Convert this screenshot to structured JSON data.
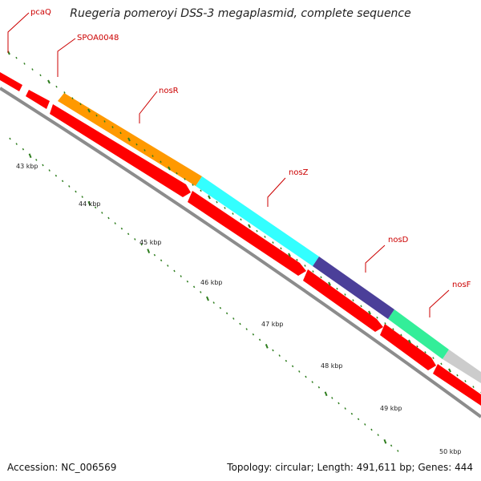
{
  "title": "Ruegeria pomeroyi DSS-3 megaplasmid, complete sequence",
  "footer": {
    "accession": "Accession: NC_006569",
    "summary": "Topology: circular; Length: 491,611 bp; Genes: 444"
  },
  "colors": {
    "backbone": "#8c8c8c",
    "tick": "#2e7d1e",
    "feature_red": "#ff0000",
    "label_text": "#cc0000"
  },
  "kbp_labels": [
    "43 kbp",
    "44 kbp",
    "45 kbp",
    "46 kbp",
    "47 kbp",
    "48 kbp",
    "49 kbp",
    "50 kbp"
  ],
  "genes": [
    {
      "name": "pcaQ",
      "color": "#ff0000"
    },
    {
      "name": "SPOA0048",
      "color": "#ff0000"
    },
    {
      "name": "nosR",
      "color": "#ff9900"
    },
    {
      "name": "nosZ",
      "color": "#33ffff"
    },
    {
      "name": "nosD",
      "color": "#4b3f99"
    },
    {
      "name": "nosF",
      "color": "#33ee99"
    },
    {
      "name": "",
      "color": "#cccccc"
    }
  ]
}
